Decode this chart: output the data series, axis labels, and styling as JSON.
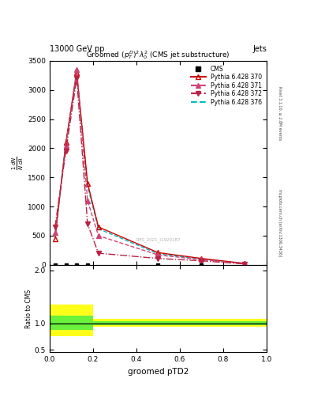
{
  "title": "Groomed $(p_T^D)^2\\lambda_0^2$ (CMS jet substructure)",
  "top_left": "13000 GeV pp",
  "top_right": "Jets",
  "right_label_top": "Rivet 3.1.10, ≥ 2.8M events",
  "right_label_bot": "mcplots.cern.ch [arXiv:1306.3436]",
  "xlabel": "groomed pTD2",
  "ylabel": "$\\frac{1}{N}\\frac{dN}{d\\lambda}$",
  "xlim": [
    0,
    1
  ],
  "ylim_main": [
    0,
    3500
  ],
  "ylim_ratio": [
    0.45,
    2.1
  ],
  "cms_x": [
    0.025,
    0.075,
    0.125,
    0.175,
    0.5,
    0.7
  ],
  "cms_y": [
    0,
    0,
    0,
    0,
    0,
    0
  ],
  "p370_x": [
    0.025,
    0.075,
    0.125,
    0.175,
    0.225,
    0.5,
    0.7,
    0.9
  ],
  "p370_y": [
    450,
    2100,
    3300,
    1400,
    650,
    210,
    110,
    25
  ],
  "p371_x": [
    0.025,
    0.075,
    0.125,
    0.175,
    0.225,
    0.5,
    0.7,
    0.9
  ],
  "p371_y": [
    550,
    2050,
    3350,
    1100,
    500,
    170,
    90,
    20
  ],
  "p372_x": [
    0.025,
    0.075,
    0.125,
    0.175,
    0.225,
    0.5,
    0.7,
    0.9
  ],
  "p372_y": [
    650,
    1950,
    3200,
    700,
    200,
    110,
    70,
    15
  ],
  "p376_x": [
    0.025,
    0.075,
    0.125,
    0.175,
    0.225,
    0.5,
    0.7,
    0.9
  ],
  "p376_y": [
    500,
    2100,
    3280,
    1350,
    620,
    190,
    100,
    22
  ],
  "color_370": "#cc0000",
  "color_371": "#cc4477",
  "color_372": "#bb2244",
  "color_376": "#00bbbb",
  "ratio_yellow_bins_x": [
    0.0,
    0.05,
    0.1,
    0.15,
    0.2,
    1.0
  ],
  "ratio_yellow_low": [
    0.75,
    0.75,
    0.75,
    0.75,
    0.93,
    0.93
  ],
  "ratio_yellow_high": [
    1.35,
    1.35,
    1.35,
    1.35,
    1.08,
    1.08
  ],
  "ratio_green_bins_x": [
    0.0,
    0.05,
    0.1,
    0.15,
    0.2,
    1.0
  ],
  "ratio_green_low": [
    0.88,
    0.88,
    0.88,
    0.88,
    0.96,
    0.96
  ],
  "ratio_green_high": [
    1.15,
    1.15,
    1.15,
    1.15,
    1.04,
    1.04
  ]
}
